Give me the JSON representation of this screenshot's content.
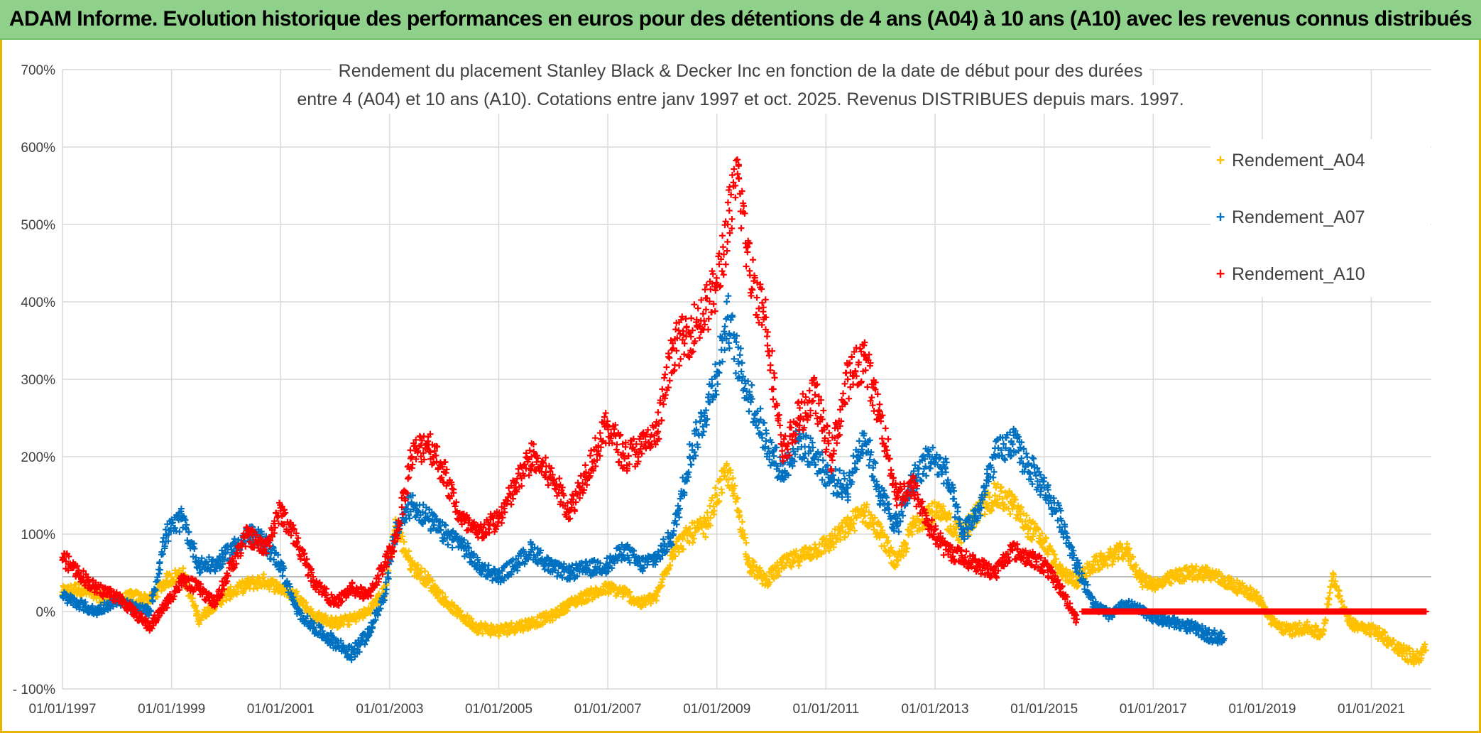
{
  "header": {
    "title": "ADAM Informe. Evolution historique des performances en euros pour des détentions de 4 ans (A04) à 10 ans (A10) avec les revenus connus distribués"
  },
  "colors": {
    "banner": "#8fd18a",
    "frame": "#e8b400",
    "grid": "#d9d9d9",
    "A04": "#ffc000",
    "A07": "#0070c0",
    "A10": "#ff0000"
  },
  "chart_data": {
    "type": "scatter",
    "title_lines": [
      "Rendement du placement Stanley Black & Decker Inc en fonction de la date de début pour des durées",
      "entre 4 (A04) et 10 ans (A10). Cotations entre janv 1997 et oct. 2025. Revenus DISTRIBUES depuis mars. 1997."
    ],
    "xlabel": "",
    "ylabel": "",
    "x_range": [
      1997.0,
      2022.1
    ],
    "ylim": [
      -100,
      700
    ],
    "y_ticks": [
      700,
      600,
      500,
      400,
      300,
      200,
      100,
      0,
      -100
    ],
    "y_tick_labels": [
      "700%",
      "600%",
      "500%",
      "400%",
      "300%",
      "200%",
      "100%",
      "0%",
      "- 100%"
    ],
    "x_ticks": [
      1997,
      1999,
      2001,
      2003,
      2005,
      2007,
      2009,
      2011,
      2013,
      2015,
      2017,
      2019,
      2021
    ],
    "x_tick_labels": [
      "01/01/1997",
      "01/01/1999",
      "01/01/2001",
      "01/01/2003",
      "01/01/2005",
      "01/01/2007",
      "01/01/2009",
      "01/01/2011",
      "01/01/2013",
      "01/01/2015",
      "01/01/2017",
      "01/01/2019",
      "01/01/2021"
    ],
    "reference_line_y": 45,
    "grid": true,
    "legend_position": "top-right",
    "marker": "+",
    "series": [
      {
        "name": "Rendement_A04",
        "color": "#ffc000",
        "x": [
          1997.0,
          1997.3,
          1997.6,
          1998.0,
          1998.3,
          1998.6,
          1998.9,
          1999.2,
          1999.5,
          1999.8,
          2000.1,
          2000.4,
          2000.7,
          2001.0,
          2001.3,
          2001.6,
          2002.0,
          2002.3,
          2002.6,
          2002.9,
          2003.1,
          2003.4,
          2003.7,
          2004.0,
          2004.3,
          2004.6,
          2005.0,
          2005.3,
          2005.6,
          2006.0,
          2006.3,
          2006.6,
          2007.0,
          2007.3,
          2007.6,
          2007.9,
          2008.2,
          2008.5,
          2008.8,
          2009.0,
          2009.2,
          2009.4,
          2009.6,
          2009.9,
          2010.2,
          2010.5,
          2010.8,
          2011.1,
          2011.4,
          2011.7,
          2012.0,
          2012.3,
          2012.6,
          2012.9,
          2013.2,
          2013.5,
          2013.8,
          2014.1,
          2014.4,
          2014.7,
          2015.0,
          2015.3,
          2015.6,
          2015.9,
          2016.2,
          2016.5,
          2016.8,
          2017.1,
          2017.4,
          2017.7,
          2018.0,
          2018.3,
          2018.6,
          2018.9,
          2019.2,
          2019.5,
          2019.8,
          2020.1,
          2020.3,
          2020.6,
          2020.9,
          2021.2,
          2021.5,
          2021.8,
          2022.0
        ],
        "y": [
          25,
          30,
          20,
          15,
          20,
          15,
          40,
          50,
          -10,
          10,
          25,
          35,
          40,
          30,
          20,
          -5,
          -15,
          -10,
          0,
          25,
          110,
          60,
          40,
          15,
          -5,
          -20,
          -25,
          -20,
          -15,
          -5,
          10,
          20,
          30,
          25,
          10,
          20,
          80,
          100,
          110,
          150,
          180,
          130,
          60,
          40,
          60,
          70,
          80,
          90,
          110,
          130,
          100,
          60,
          110,
          130,
          120,
          100,
          130,
          150,
          140,
          110,
          90,
          50,
          40,
          60,
          70,
          80,
          40,
          35,
          45,
          50,
          50,
          40,
          30,
          20,
          -15,
          -25,
          -20,
          -30,
          45,
          -15,
          -20,
          -30,
          -50,
          -60,
          -50
        ]
      },
      {
        "name": "Rendement_A07",
        "color": "#0070c0",
        "x": [
          1997.0,
          1997.3,
          1997.6,
          1998.0,
          1998.3,
          1998.6,
          1998.9,
          1999.2,
          1999.5,
          1999.8,
          2000.1,
          2000.4,
          2000.7,
          2001.0,
          2001.3,
          2001.6,
          2002.0,
          2002.3,
          2002.6,
          2002.9,
          2003.1,
          2003.4,
          2003.7,
          2004.0,
          2004.3,
          2004.6,
          2005.0,
          2005.3,
          2005.6,
          2006.0,
          2006.3,
          2006.6,
          2007.0,
          2007.3,
          2007.6,
          2007.9,
          2008.2,
          2008.5,
          2008.8,
          2009.0,
          2009.2,
          2009.4,
          2009.6,
          2009.9,
          2010.2,
          2010.5,
          2010.8,
          2011.1,
          2011.4,
          2011.7,
          2012.0,
          2012.3,
          2012.6,
          2012.9,
          2013.2,
          2013.5,
          2013.8,
          2014.1,
          2014.4,
          2014.7,
          2015.0,
          2015.3,
          2015.6,
          2015.9,
          2016.2,
          2016.5,
          2016.8,
          2017.1,
          2017.4,
          2017.7,
          2018.0,
          2018.3
        ],
        "y": [
          20,
          10,
          0,
          15,
          5,
          0,
          100,
          120,
          60,
          60,
          80,
          100,
          90,
          60,
          0,
          -20,
          -40,
          -55,
          -30,
          20,
          100,
          140,
          120,
          100,
          90,
          60,
          45,
          60,
          80,
          55,
          50,
          55,
          60,
          80,
          60,
          70,
          100,
          200,
          260,
          310,
          380,
          320,
          280,
          220,
          180,
          220,
          200,
          170,
          160,
          230,
          150,
          110,
          170,
          200,
          180,
          100,
          130,
          200,
          220,
          190,
          160,
          120,
          60,
          10,
          -5,
          10,
          0,
          -10,
          -15,
          -20,
          -30,
          -35
        ]
      },
      {
        "name": "Rendement_A10",
        "color": "#ff0000",
        "x": [
          1997.0,
          1997.3,
          1997.6,
          1998.0,
          1998.3,
          1998.6,
          1998.9,
          1999.2,
          1999.5,
          1999.8,
          2000.1,
          2000.4,
          2000.7,
          2001.0,
          2001.3,
          2001.6,
          2002.0,
          2002.3,
          2002.6,
          2002.9,
          2003.1,
          2003.4,
          2003.7,
          2004.0,
          2004.3,
          2004.6,
          2005.0,
          2005.3,
          2005.6,
          2006.0,
          2006.3,
          2006.6,
          2007.0,
          2007.3,
          2007.6,
          2007.9,
          2008.2,
          2008.5,
          2008.8,
          2009.0,
          2009.2,
          2009.4,
          2009.6,
          2009.9,
          2010.2,
          2010.5,
          2010.8,
          2011.1,
          2011.4,
          2011.7,
          2012.0,
          2012.3,
          2012.6,
          2012.9,
          2013.2,
          2013.5,
          2013.8,
          2014.1,
          2014.4,
          2014.7,
          2015.0,
          2015.3,
          2015.6
        ],
        "y": [
          70,
          50,
          30,
          20,
          0,
          -20,
          10,
          40,
          30,
          10,
          60,
          100,
          80,
          130,
          90,
          40,
          10,
          30,
          20,
          60,
          90,
          200,
          220,
          180,
          120,
          100,
          120,
          160,
          200,
          170,
          130,
          180,
          240,
          200,
          210,
          230,
          340,
          360,
          390,
          420,
          500,
          560,
          440,
          380,
          200,
          250,
          280,
          200,
          300,
          330,
          250,
          150,
          160,
          110,
          80,
          70,
          60,
          50,
          80,
          70,
          60,
          30,
          -10
        ]
      }
    ],
    "zero_segment": {
      "series": "Rendement_A10",
      "x_start": 2015.7,
      "x_end": 2022.0,
      "y": 0
    }
  }
}
